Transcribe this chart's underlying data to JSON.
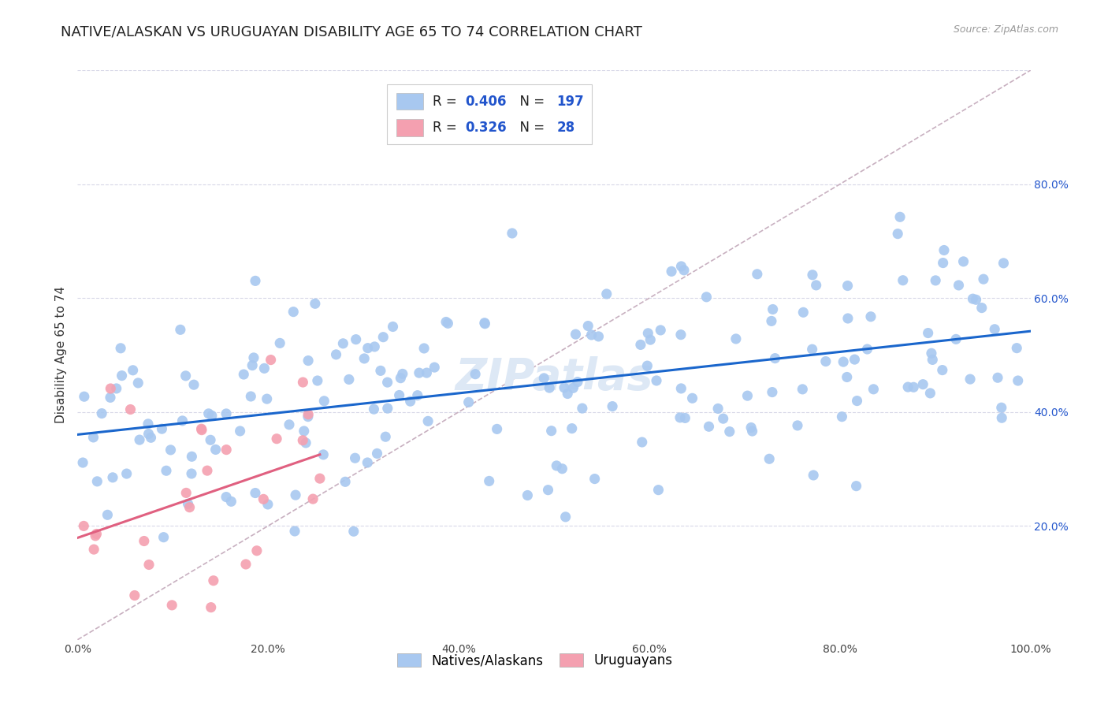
{
  "title": "NATIVE/ALASKAN VS URUGUAYAN DISABILITY AGE 65 TO 74 CORRELATION CHART",
  "source": "Source: ZipAtlas.com",
  "ylabel": "Disability Age 65 to 74",
  "native_R": 0.406,
  "native_N": 197,
  "uruguayan_R": 0.326,
  "uruguayan_N": 28,
  "xlim": [
    0,
    1
  ],
  "ylim": [
    0,
    1
  ],
  "xticks": [
    0.0,
    0.2,
    0.4,
    0.6,
    0.8,
    1.0
  ],
  "yticks": [
    0.0,
    0.2,
    0.4,
    0.6,
    0.8,
    1.0
  ],
  "native_color": "#a8c8f0",
  "uruguayan_color": "#f4a0b0",
  "native_line_color": "#1a66cc",
  "uruguayan_line_color": "#e06080",
  "diagonal_color": "#c8b0c0",
  "background_color": "#ffffff",
  "grid_color": "#d8d8e8",
  "title_fontsize": 13,
  "label_fontsize": 11,
  "tick_fontsize": 10,
  "watermark_text": "ZIPatlas",
  "watermark_color": "#dde8f5"
}
